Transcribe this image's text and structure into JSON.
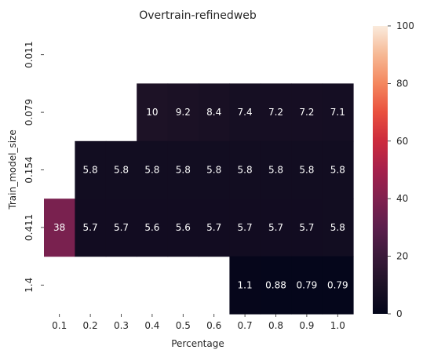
{
  "chart_data": {
    "type": "heatmap",
    "title": "Overtrain-refinedweb",
    "xlabel": "Percentage",
    "ylabel": "Train_model_size",
    "x_categories": [
      "0.1",
      "0.2",
      "0.3",
      "0.4",
      "0.5",
      "0.6",
      "0.7",
      "0.8",
      "0.9",
      "1.0"
    ],
    "y_categories": [
      "0.011",
      "0.079",
      "0.154",
      "0.411",
      "1.4"
    ],
    "values": [
      [
        null,
        null,
        null,
        null,
        null,
        null,
        null,
        null,
        null,
        null
      ],
      [
        null,
        null,
        null,
        10,
        9.2,
        8.4,
        7.4,
        7.2,
        7.2,
        7.1
      ],
      [
        null,
        5.8,
        5.8,
        5.8,
        5.8,
        5.8,
        5.8,
        5.8,
        5.8,
        5.8
      ],
      [
        38,
        5.7,
        5.7,
        5.6,
        5.6,
        5.7,
        5.7,
        5.7,
        5.7,
        5.8
      ],
      [
        null,
        null,
        null,
        null,
        null,
        null,
        1.1,
        0.88,
        0.79,
        0.79
      ]
    ],
    "value_labels": [
      [
        null,
        null,
        null,
        null,
        null,
        null,
        null,
        null,
        null,
        null
      ],
      [
        null,
        null,
        null,
        "10",
        "9.2",
        "8.4",
        "7.4",
        "7.2",
        "7.2",
        "7.1"
      ],
      [
        null,
        "5.8",
        "5.8",
        "5.8",
        "5.8",
        "5.8",
        "5.8",
        "5.8",
        "5.8",
        "5.8"
      ],
      [
        "38",
        "5.7",
        "5.7",
        "5.6",
        "5.6",
        "5.7",
        "5.7",
        "5.7",
        "5.7",
        "5.8"
      ],
      [
        null,
        null,
        null,
        null,
        null,
        null,
        "1.1",
        "0.88",
        "0.79",
        "0.79"
      ]
    ],
    "colorbar": {
      "min": 0,
      "max": 100,
      "ticks": [
        "0",
        "20",
        "40",
        "60",
        "80",
        "100"
      ],
      "colormap": "rocket"
    }
  }
}
